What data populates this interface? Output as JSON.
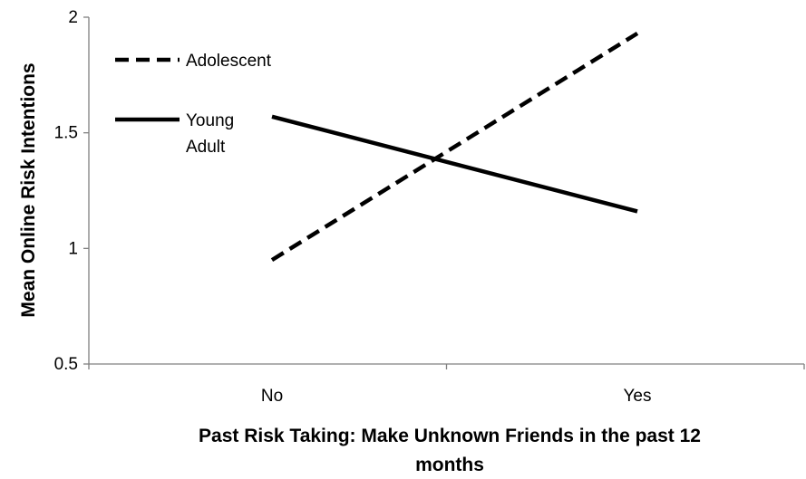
{
  "chart_data": {
    "type": "line",
    "categories": [
      "No",
      "Yes"
    ],
    "series": [
      {
        "name": "Adolescent",
        "values": [
          0.95,
          1.93
        ],
        "line_style": "dashed",
        "color": "#000000"
      },
      {
        "name": "Young Adult",
        "values": [
          1.57,
          1.16
        ],
        "line_style": "solid",
        "color": "#000000"
      }
    ],
    "xlabel": "Past Risk Taking: Make Unknown Friends in the past 12 months",
    "xlabel_lines": [
      "Past Risk Taking: Make Unknown Friends in the past 12",
      "months"
    ],
    "ylabel": "Mean Online Risk Intentions",
    "ylim": [
      0.5,
      2
    ],
    "yticks": [
      "0.5",
      "1",
      "1.5",
      "2"
    ],
    "legend": {
      "placement": "top-left",
      "entries": [
        {
          "lines": [
            "Adolescent"
          ]
        },
        {
          "lines": [
            "Young",
            "Adult"
          ]
        }
      ]
    },
    "grid": false
  }
}
